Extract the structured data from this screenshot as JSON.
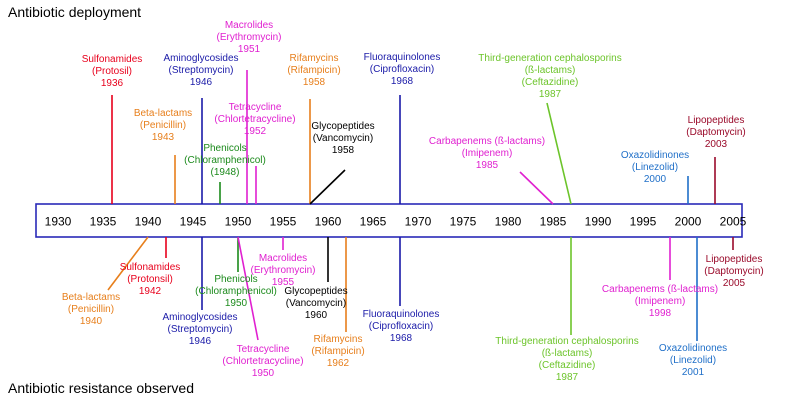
{
  "headings": {
    "deployment": "Antibiotic deployment",
    "resistance": "Antibiotic resistance observed"
  },
  "colors": {
    "red": "#e8001c",
    "orange": "#e77f1c",
    "navy": "#1a1aa8",
    "magenta": "#e020d0",
    "green": "#1c8a1c",
    "black": "#000000",
    "lime": "#6cc42a",
    "blue": "#1f6fc8",
    "teal": "#39a8a8",
    "maroon": "#9a0a2a",
    "axis": "#2a2ab8"
  },
  "timeline": {
    "start_year": 1927,
    "end_year": 2008,
    "tick_years": [
      1930,
      1935,
      1940,
      1945,
      1950,
      1955,
      1960,
      1965,
      1970,
      1975,
      1980,
      1985,
      1990,
      1995,
      2000,
      2005
    ],
    "tick_labels": [
      "1930",
      "1935",
      "1940",
      "1945",
      "1950",
      "1955",
      "1960",
      "1965",
      "1970",
      "1975",
      "1980",
      "1985",
      "1990",
      "1995",
      "2000",
      "2005"
    ]
  },
  "deployment": [
    {
      "class": "Sulfonamides",
      "drug": "(Protosil)",
      "year": 1936,
      "year_label": "1936",
      "color": "red"
    },
    {
      "class": "Beta-lactams",
      "drug": "(Penicillin)",
      "year": 1943,
      "year_label": "1943",
      "color": "orange"
    },
    {
      "class": "Aminoglycosides",
      "drug": "(Streptomycin)",
      "year": 1946,
      "year_label": "1946",
      "color": "navy"
    },
    {
      "class": "Phenicols",
      "drug": "(Chloramphenicol)",
      "year": 1948,
      "year_label": "(1948)",
      "color": "green"
    },
    {
      "class": "Macrolides",
      "drug": "(Erythromycin)",
      "year": 1951,
      "year_label": "1951",
      "color": "magenta"
    },
    {
      "class": "Tetracycline",
      "drug": "(Chlortetracycline)",
      "year": 1952,
      "year_label": "1952",
      "color": "magenta"
    },
    {
      "class": "Rifamycins",
      "drug": "(Rifampicin)",
      "year": 1958,
      "year_label": "1958",
      "color": "orange"
    },
    {
      "class": "Glycopeptides",
      "drug": "(Vancomycin)",
      "year": 1958,
      "year_label": "1958",
      "color": "black"
    },
    {
      "class": "Fluoraquinolones",
      "drug": "(Ciprofloxacin)",
      "year": 1968,
      "year_label": "1968",
      "color": "navy"
    },
    {
      "class": "Carbapenems (ß-lactams)",
      "drug": "(Imipenem)",
      "year": 1985,
      "year_label": "1985",
      "color": "magenta"
    },
    {
      "class": "Third-generation cephalosporins (ß-lactams)",
      "drug": "(Ceftazidine)",
      "year": 1987,
      "year_label": "1987",
      "color": "lime"
    },
    {
      "class": "Oxazolidinones",
      "drug": "(Linezolid)",
      "year": 2000,
      "year_label": "2000",
      "color": "blue"
    },
    {
      "class": "Lipopeptides",
      "drug": "(Daptomycin)",
      "year": 2003,
      "year_label": "2003",
      "color": "maroon"
    }
  ],
  "resistance": [
    {
      "class": "Beta-lactams",
      "drug": "(Penicillin)",
      "year": 1940,
      "year_label": "1940",
      "color": "orange"
    },
    {
      "class": "Sulfonamides",
      "drug": "(Protonsil)",
      "year": 1942,
      "year_label": "1942",
      "color": "red"
    },
    {
      "class": "Aminoglycosides",
      "drug": "(Streptomycin)",
      "year": 1946,
      "year_label": "1946",
      "color": "navy"
    },
    {
      "class": "Phenicols",
      "drug": "(Chloramphenicol)",
      "year": 1950,
      "year_label": "1950",
      "color": "green"
    },
    {
      "class": "Tetracycline",
      "drug": "(Chlortetracycline)",
      "year": 1950,
      "year_label": "1950",
      "color": "magenta"
    },
    {
      "class": "Macrolides",
      "drug": "(Erythromycin)",
      "year": 1955,
      "year_label": "1955",
      "color": "magenta"
    },
    {
      "class": "Glycopeptides",
      "drug": "(Vancomycin)",
      "year": 1960,
      "year_label": "1960",
      "color": "black"
    },
    {
      "class": "Rifamycins",
      "drug": "(Rifampicin)",
      "year": 1962,
      "year_label": "1962",
      "color": "orange"
    },
    {
      "class": "Fluoraquinolones",
      "drug": "(Ciprofloxacin)",
      "year": 1968,
      "year_label": "1968",
      "color": "navy"
    },
    {
      "class": "Third-generation cephalosporins (ß-lactams)",
      "drug": "(Ceftazidine)",
      "year": 1987,
      "year_label": "1987",
      "color": "lime"
    },
    {
      "class": "Carbapenems (ß-lactams)",
      "drug": "(Imipenem)",
      "year": 1998,
      "year_label": "1998",
      "color": "magenta"
    },
    {
      "class": "Oxazolidinones",
      "drug": "(Linezolid)",
      "year": 2001,
      "year_label": "2001",
      "color": "blue"
    },
    {
      "class": "Lipopeptides",
      "drug": "(Daptomycin)",
      "year": 2005,
      "year_label": "2005",
      "color": "maroon"
    }
  ]
}
